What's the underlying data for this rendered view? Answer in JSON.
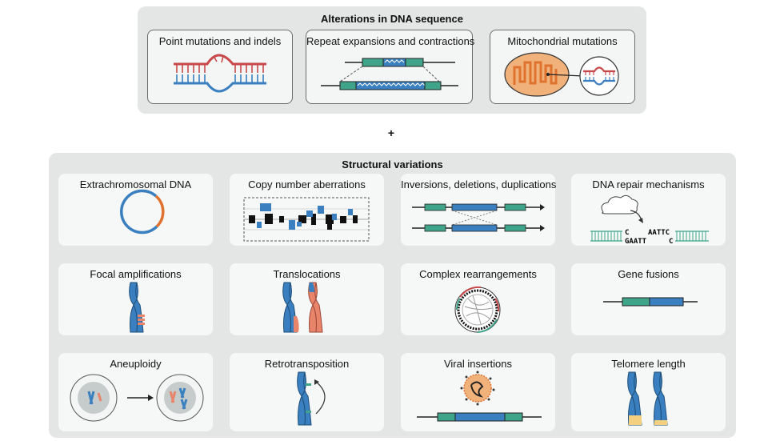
{
  "alterations": {
    "title": "Alterations in DNA sequence",
    "cards": [
      "Point mutations and indels",
      "Repeat expansions and contractions",
      "Mitochondrial mutations"
    ]
  },
  "plus": "+",
  "structural": {
    "title": "Structural variations",
    "cards": [
      "Extrachromosomal DNA",
      "Copy number aberrations",
      "Inversions, deletions, duplications",
      "DNA repair mechanisms",
      "Focal amplifications",
      "Translocations",
      "Complex rearrangements",
      "Gene fusions",
      "Aneuploidy",
      "Retrotransposition",
      "Viral insertions",
      "Telomere length"
    ]
  },
  "repair_seq": {
    "top": "C",
    "top_right": "AATTC",
    "bottom": "GAATT",
    "bottom_right": "C"
  },
  "colors": {
    "red": "#c8484a",
    "blue": "#3a7fbf",
    "teal": "#3fa48a",
    "orange": "#e0722f",
    "panel": "#e4e6e6",
    "card": "#f6f7f7"
  },
  "icons": [
    "double-helix-icon",
    "repeat-expansion-icon",
    "mitochondrion-icon",
    "plasmid-ring-icon",
    "copy-number-plot-icon",
    "inversion-icon",
    "cloud-icon",
    "chromosome-icon",
    "circos-plot-icon",
    "cell-icon",
    "virus-icon"
  ]
}
